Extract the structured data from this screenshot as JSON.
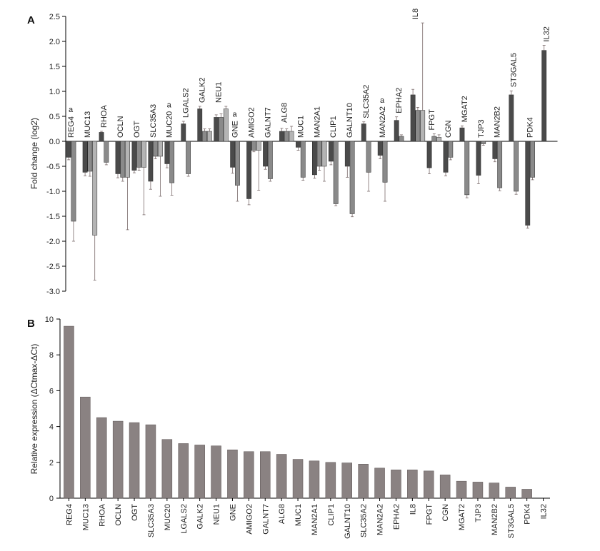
{
  "chart_data": [
    {
      "panel_label": "A",
      "type": "bar",
      "ylabel": "Fold change (log2)",
      "ylim": [
        -3.0,
        2.5
      ],
      "yticks": [
        "2.5",
        "2.0",
        "1.5",
        "1.0",
        "0.5",
        "0.0",
        "-0.5",
        "-1.0",
        "-1.5",
        "-2.0",
        "-2.5",
        "-3.0"
      ],
      "annotation_marker": "a",
      "categories": [
        "REG4",
        "MUC13",
        "RHOA",
        "OCLN",
        "OGT",
        "SLC35A3",
        "MUC20",
        "LGALS2",
        "GALK2",
        "NEU1",
        "GNE",
        "AMIGO2",
        "GALNT7",
        "ALG8",
        "MUC1",
        "MAN2A1",
        "CLIP1",
        "GALNT10",
        "SLC35A2",
        "MAN2A2",
        "EPHA2",
        "IL8",
        "FPGT",
        "CGN",
        "MGAT2",
        "TJP3",
        "MAN2B2",
        "ST3GAL5",
        "PDK4",
        "IL32"
      ],
      "annotated": [
        "REG4",
        "MUC20",
        "GNE",
        "MAN2A2"
      ],
      "colors": [
        "#4a4a4a",
        "#8a8a8a",
        "#b4b4b4"
      ],
      "series": [
        {
          "values": [
            -0.32,
            -0.62,
            0.18,
            -0.65,
            -0.58,
            -0.8,
            -0.45,
            0.35,
            0.65,
            0.48,
            -0.52,
            -1.15,
            -0.5,
            0.2,
            -0.12,
            -0.67,
            -0.4,
            -0.5,
            0.35,
            -0.28,
            0.42,
            0.93,
            -0.53,
            -0.62,
            0.27,
            -0.68,
            -0.35,
            0.93,
            -1.68,
            1.82
          ],
          "errors": [
            0.05,
            0.07,
            0.02,
            0.08,
            0.05,
            0.16,
            0.08,
            0.05,
            0.05,
            0.05,
            0.12,
            0.12,
            0.06,
            0.06,
            0.06,
            0.07,
            0.07,
            0.22,
            0.04,
            0.07,
            0.07,
            0.11,
            0.12,
            0.07,
            0.04,
            0.17,
            0.06,
            0.08,
            0.06,
            0.1
          ]
        },
        {
          "values": [
            -1.6,
            -0.6,
            -0.42,
            -0.72,
            -0.52,
            -0.3,
            -0.83,
            -0.65,
            0.2,
            0.48,
            -0.88,
            -0.18,
            -0.75,
            0.2,
            -0.72,
            -0.5,
            -1.25,
            -1.45,
            -0.62,
            -0.82,
            0.1,
            0.62,
            0.1,
            -0.32,
            -1.07,
            -0.05,
            -0.93,
            -1.0,
            -0.72,
            0.0
          ],
          "errors": [
            0.4,
            0.1,
            0.05,
            0.08,
            0.06,
            0.05,
            0.25,
            0.05,
            0.05,
            0.07,
            0.32,
            0.03,
            0.05,
            0.05,
            0.06,
            0.08,
            0.04,
            0.06,
            0.38,
            0.38,
            0.03,
            0.06,
            0.05,
            0.05,
            0.06,
            0.03,
            0.06,
            0.06,
            0.05,
            0.0
          ]
        },
        {
          "values": [
            0.0,
            -1.88,
            0.0,
            -0.72,
            -0.52,
            -0.3,
            0.0,
            0.0,
            0.2,
            0.65,
            0.0,
            -0.18,
            0.0,
            0.2,
            0.0,
            -0.5,
            0.0,
            0.0,
            0.0,
            0.0,
            0.0,
            0.62,
            0.08,
            0.0,
            0.0,
            0.0,
            0.0,
            0.0,
            0.0,
            0.0
          ],
          "errors": [
            0.0,
            0.9,
            0.0,
            1.05,
            0.95,
            0.8,
            0.0,
            0.0,
            0.05,
            0.05,
            0.0,
            0.8,
            0.0,
            0.1,
            0.0,
            0.3,
            0.0,
            0.0,
            0.0,
            0.0,
            0.0,
            1.75,
            0.05,
            0.0,
            0.0,
            0.0,
            0.0,
            0.0,
            0.0,
            0.0
          ]
        }
      ]
    },
    {
      "panel_label": "B",
      "type": "bar",
      "ylabel": "Relative expression (ΔCtmax-ΔCt)",
      "ylim": [
        0,
        10
      ],
      "yticks": [
        "10",
        "8",
        "6",
        "4",
        "2",
        "0"
      ],
      "bar_color": "#8a8282",
      "categories": [
        "REG4",
        "MUC13",
        "RHOA",
        "OCLN",
        "OGT",
        "SLC35A3",
        "MUC20",
        "LGALS2",
        "GALK2",
        "NEU1",
        "GNE",
        "AMIGO2",
        "GALNT7",
        "ALG8",
        "MUC1",
        "MAN2A1",
        "CLIP1",
        "GALNT10",
        "SLC35A2",
        "MAN2A2",
        "EPHA2",
        "IL8",
        "FPGT",
        "CGN",
        "MGAT2",
        "TJP3",
        "MAN2B2",
        "ST3GAL5",
        "PDK4",
        "IL32"
      ],
      "values": [
        9.6,
        5.65,
        4.5,
        4.3,
        4.22,
        4.1,
        3.28,
        3.05,
        2.97,
        2.92,
        2.7,
        2.6,
        2.6,
        2.45,
        2.17,
        2.08,
        2.0,
        1.97,
        1.9,
        1.68,
        1.58,
        1.58,
        1.52,
        1.3,
        0.95,
        0.9,
        0.85,
        0.62,
        0.5,
        0.0
      ]
    }
  ]
}
